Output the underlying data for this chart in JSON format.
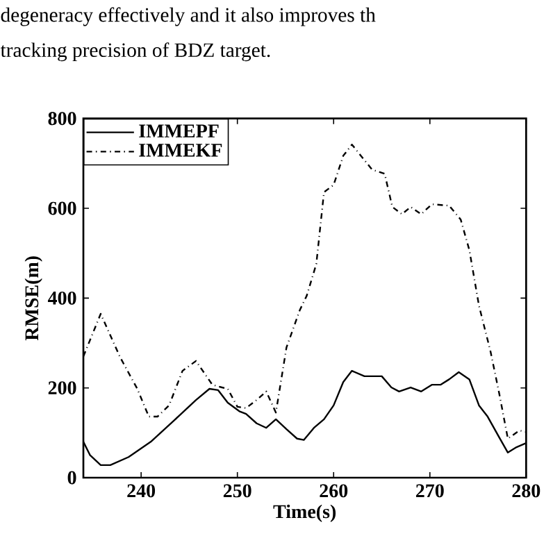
{
  "chart_data": {
    "type": "line",
    "xlabel": "Time(s)",
    "ylabel": "RMSE(m)",
    "annotations": [
      "degeneracy effectively and it also improves th",
      "tracking precision of BDZ target."
    ],
    "xlim": [
      234,
      280
    ],
    "ylim": [
      0,
      800
    ],
    "xticks": [
      240,
      250,
      260,
      270,
      280
    ],
    "yticks": [
      0,
      200,
      400,
      600,
      800
    ],
    "legend": "top left",
    "grid": false,
    "series": [
      {
        "name": "IMMEPF",
        "color": "#000000",
        "line_style": "solid",
        "x": [
          234,
          234.7,
          235.8,
          236.8,
          238.7,
          241,
          243.4,
          245.7,
          247.1,
          248,
          249,
          250.2,
          250.9,
          252,
          253,
          254,
          255.1,
          256.2,
          256.9,
          258,
          259,
          260,
          261,
          261.9,
          263.2,
          265,
          266,
          266.8,
          268,
          269.1,
          270.2,
          271.1,
          272,
          273,
          274.1,
          275.1,
          276,
          277.2,
          278.1,
          279,
          280
        ],
        "values": [
          80,
          50,
          28,
          28,
          46,
          80,
          127,
          173,
          198,
          195,
          167,
          148,
          142,
          121,
          111,
          130,
          108,
          87,
          84,
          112,
          130,
          161,
          213,
          238,
          226,
          226,
          201,
          192,
          201,
          192,
          207,
          207,
          219,
          235,
          219,
          161,
          136,
          90,
          56,
          68,
          77
        ]
      },
      {
        "name": "IMMEKF",
        "color": "#000000",
        "line_style": "dashdot",
        "x": [
          234,
          235.8,
          237.8,
          239.6,
          240.8,
          241.7,
          242.9,
          244.3,
          245.7,
          247.4,
          248.4,
          249,
          250,
          250.9,
          252,
          253,
          254,
          255.1,
          256.5,
          257.2,
          258.2,
          259,
          260,
          261,
          261.9,
          264,
          265.3,
          266.1,
          267.1,
          268,
          269.1,
          270.2,
          272,
          273.2,
          274.1,
          275.1,
          276.3,
          277.2,
          278.1,
          279.3,
          280
        ],
        "values": [
          270,
          365,
          269,
          198,
          136,
          136,
          161,
          238,
          260,
          207,
          201,
          198,
          158,
          155,
          173,
          192,
          145,
          290,
          374,
          405,
          476,
          636,
          652,
          717,
          742,
          686,
          677,
          603,
          587,
          603,
          587,
          609,
          606,
          575,
          507,
          383,
          281,
          188,
          87,
          105,
          102
        ]
      }
    ]
  }
}
